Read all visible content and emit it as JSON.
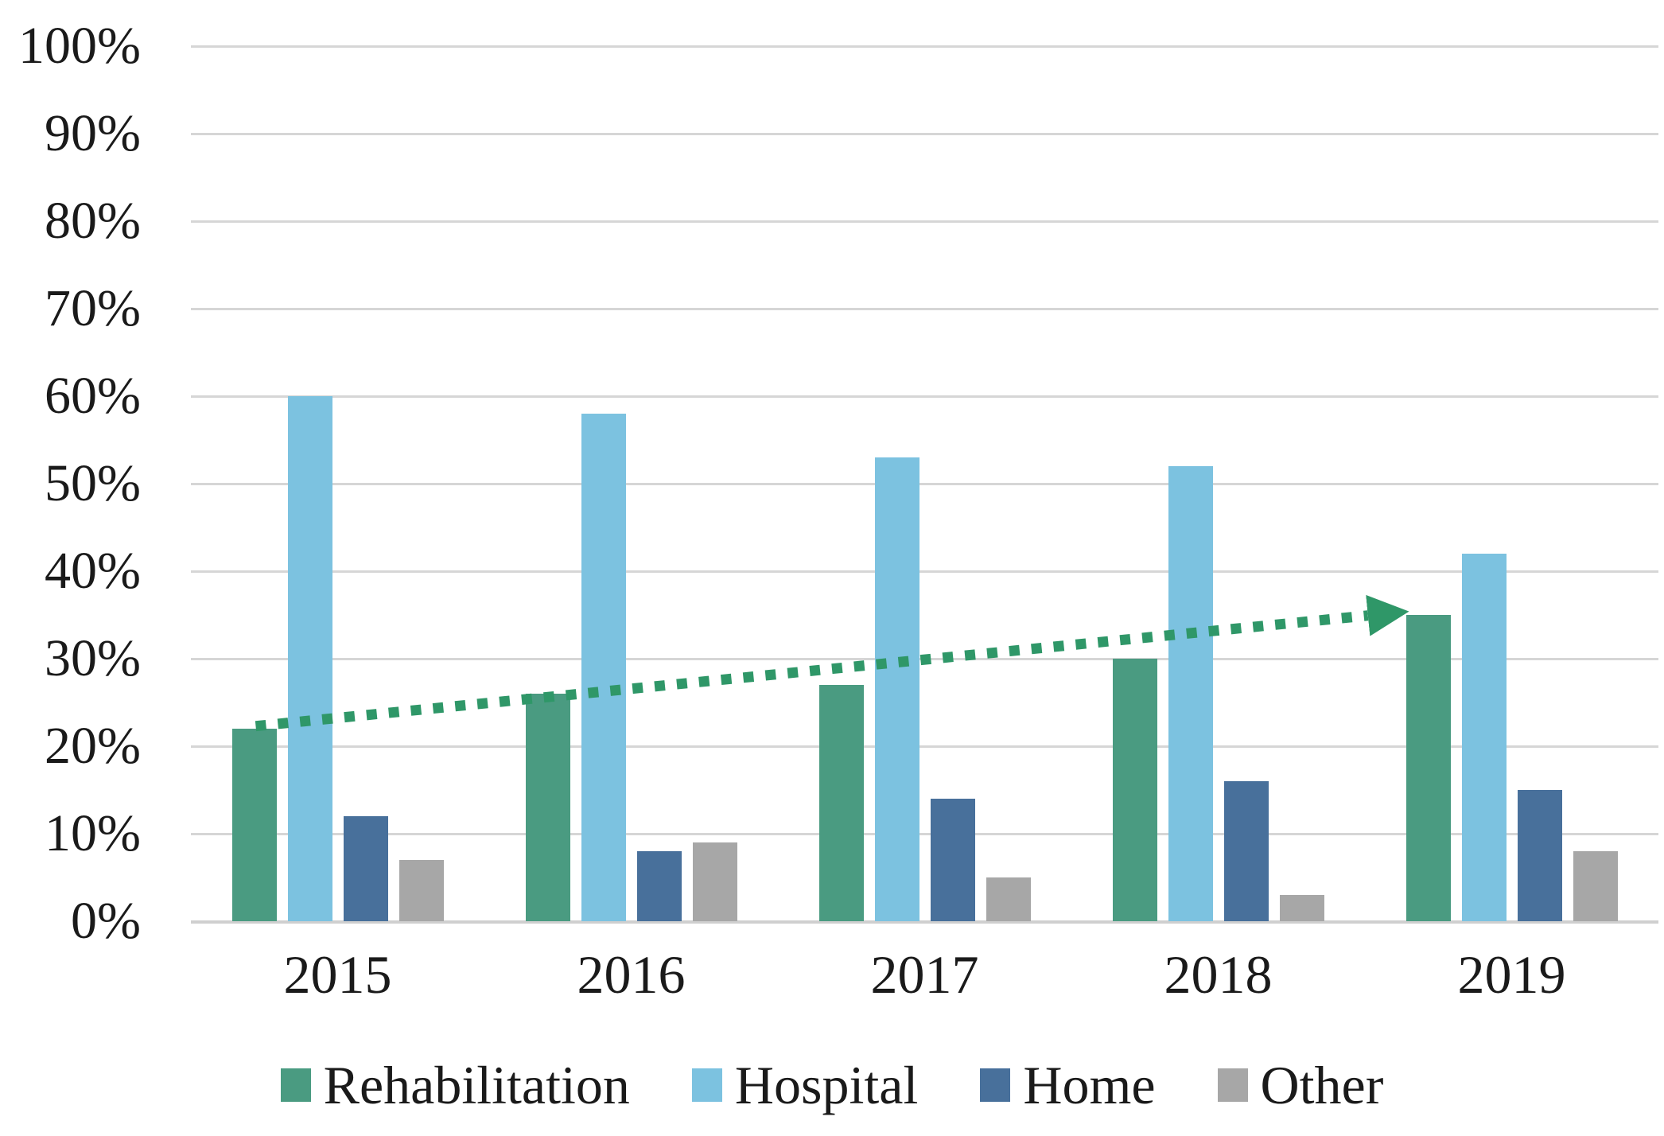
{
  "chart_data": {
    "type": "bar",
    "title": "",
    "categories": [
      "2015",
      "2016",
      "2017",
      "2018",
      "2019"
    ],
    "series": [
      {
        "name": "Rehabilitation",
        "color": "#4a9b81",
        "values": [
          22,
          26,
          27,
          30,
          35
        ]
      },
      {
        "name": "Hospital",
        "color": "#7cc2e0",
        "values": [
          60,
          58,
          53,
          52,
          42
        ]
      },
      {
        "name": "Home",
        "color": "#48709b",
        "values": [
          12,
          8,
          14,
          16,
          15
        ]
      },
      {
        "name": "Other",
        "color": "#a7a7a7",
        "values": [
          7,
          9,
          5,
          3,
          8
        ]
      }
    ],
    "y_axis": {
      "min": 0,
      "max": 100,
      "step": 10,
      "tick_labels": [
        "0%",
        "10%",
        "20%",
        "30%",
        "40%",
        "50%",
        "60%",
        "70%",
        "80%",
        "90%",
        "100%"
      ]
    },
    "grid": true,
    "gridline_color": "#d6d6d6",
    "legend_position": "bottom",
    "trendline": {
      "follows_series": "Rehabilitation",
      "style": "dotted",
      "arrow": true,
      "color": "#2f9768",
      "start": {
        "category": "2015",
        "value": 22.3
      },
      "end": {
        "category": "2019",
        "value": 35.4
      }
    }
  }
}
